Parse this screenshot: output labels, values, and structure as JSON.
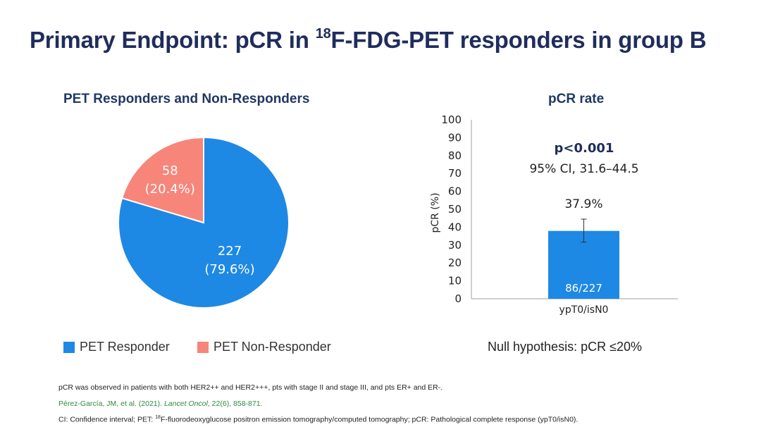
{
  "title": {
    "pre": "Primary Endpoint: pCR in ",
    "sup": "18",
    "post": "F-FDG-PET responders in group B"
  },
  "chart_data": [
    {
      "type": "pie",
      "title": "PET Responders and Non-Responders",
      "slices": [
        {
          "name": "PET Responder",
          "value": 227,
          "percent_label": "(79.6%)",
          "color": "#1e88e5"
        },
        {
          "name": "PET Non-Responder",
          "value": 58,
          "percent_label": "(20.4%)",
          "color": "#f7857a"
        }
      ]
    },
    {
      "type": "bar",
      "title": "pCR rate",
      "categories": [
        "ypT0/isN0"
      ],
      "values": [
        37.9
      ],
      "value_label": "37.9%",
      "inner_label": "86/227",
      "error_low": 31.6,
      "error_high": 44.5,
      "ylabel": "pCR (%)",
      "ylim": [
        0,
        100
      ],
      "yticks": [
        0,
        10,
        20,
        30,
        40,
        50,
        60,
        70,
        80,
        90,
        100
      ],
      "color": "#1e88e5",
      "annotation_p": "p<0.001",
      "annotation_ci": "95% CI, 31.6–44.5"
    }
  ],
  "null_hypothesis": "Null hypothesis: pCR ≤20%",
  "footnotes": {
    "line1": "pCR was observed in patients with both HER2++ and HER2+++, pts with stage II and stage III, and pts ER+ and ER-.",
    "ref_authors": "Pérez-García, JM, et al. (2021). ",
    "ref_journal": "Lancet Oncol",
    "ref_rest": ", 22(6), 858-871.",
    "abbr_pre": "CI: Confidence interval; PET: ",
    "abbr_sup": "18",
    "abbr_post": "F-fluorodeoxyglucose positron emission tomography/computed tomography; pCR: Pathological complete response (ypT0/isN0)."
  }
}
